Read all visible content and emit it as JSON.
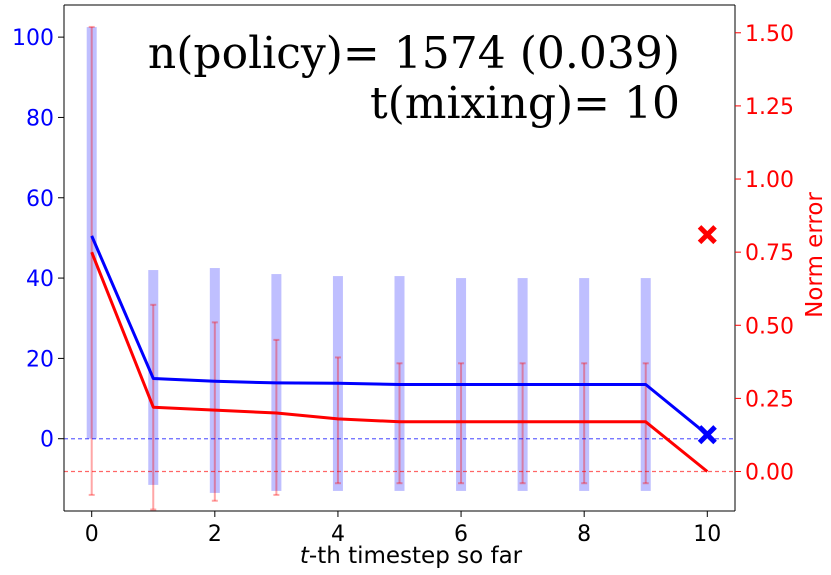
{
  "chart_data": {
    "type": "line",
    "x": [
      0,
      1,
      2,
      3,
      4,
      5,
      6,
      7,
      8,
      9,
      10
    ],
    "xlabel_italic": "t",
    "xlabel_rest": "-th timestep so far",
    "ylabel_left": "",
    "ylabel_right": "Norm error",
    "xlim": [
      -0.45,
      10.45
    ],
    "ylim_left": [
      -18,
      108
    ],
    "ylim_right": [
      -0.135,
      1.595
    ],
    "xticks": [
      "0",
      "2",
      "4",
      "6",
      "8",
      "10"
    ],
    "xtick_values": [
      0,
      2,
      4,
      6,
      8,
      10
    ],
    "yticks_left": [
      "0",
      "20",
      "40",
      "60",
      "80",
      "100"
    ],
    "ytick_values_left": [
      0,
      20,
      40,
      60,
      80,
      100
    ],
    "yticks_right": [
      "0.00",
      "0.25",
      "0.50",
      "0.75",
      "1.00",
      "1.25",
      "1.50"
    ],
    "ytick_values_right": [
      0,
      0.25,
      0.5,
      0.75,
      1.0,
      1.25,
      1.5
    ],
    "series": [
      {
        "axis": "left",
        "color": "#0000ff",
        "values": [
          50.5,
          15.0,
          14.3,
          13.9,
          13.8,
          13.5,
          13.5,
          13.5,
          13.5,
          13.5,
          1.0
        ],
        "band_low": [
          0,
          -11.5,
          -13.5,
          -13.0,
          -13.0,
          -13.0,
          -13.0,
          -13.0,
          -13.0,
          -13.0,
          null
        ],
        "band_high": [
          102.5,
          42.0,
          42.5,
          41.0,
          40.5,
          40.5,
          40.0,
          40.0,
          40.0,
          40.0,
          null
        ]
      },
      {
        "axis": "right",
        "color": "#ff0000",
        "values": [
          0.75,
          0.22,
          0.21,
          0.2,
          0.18,
          0.17,
          0.17,
          0.17,
          0.17,
          0.17,
          0.0
        ],
        "err_low": [
          -0.08,
          -0.13,
          -0.1,
          -0.08,
          -0.04,
          -0.04,
          -0.04,
          -0.04,
          -0.04,
          -0.04,
          null
        ],
        "err_high": [
          1.52,
          0.57,
          0.51,
          0.45,
          0.39,
          0.37,
          0.37,
          0.37,
          0.37,
          0.37,
          null
        ]
      }
    ],
    "markers": [
      {
        "axis": "right",
        "x": 10,
        "y": 0.81,
        "color": "#ff0000",
        "shape": "x"
      },
      {
        "axis": "left",
        "x": 10,
        "y": 1.0,
        "color": "#0000ff",
        "shape": "x"
      }
    ],
    "hlines": [
      {
        "axis": "left",
        "y": 0,
        "color": "#0000ff",
        "style": "dashed"
      },
      {
        "axis": "right",
        "y": 0,
        "color": "#ff0000",
        "style": "dashed"
      }
    ],
    "annotation_line1": "n(policy)= 1574 (0.039)",
    "annotation_line2": "t(mixing)= 10",
    "grid": false,
    "legend": "none"
  }
}
